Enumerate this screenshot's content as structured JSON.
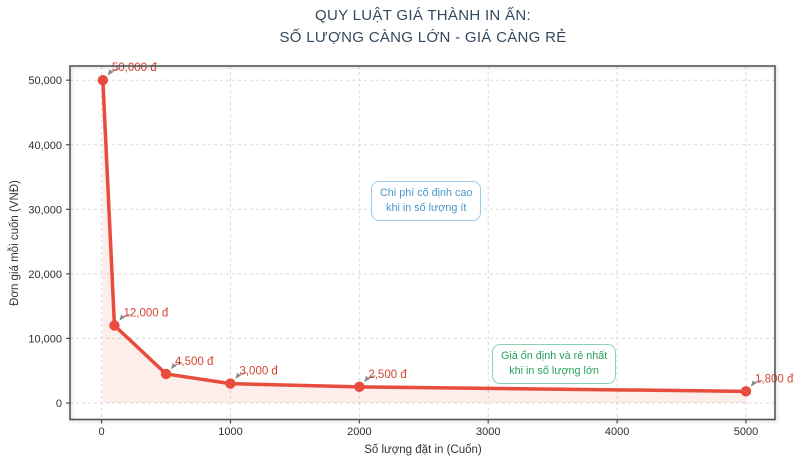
{
  "figure": {
    "title_line1": "QUY LUẬT GIÁ THÀNH IN ẤN:",
    "title_line2": "SỐ LƯỢNG CÀNG LỚN - GIÁ CÀNG RẺ"
  },
  "annotations": {
    "low_qty": {
      "line1": "Chi phí cố định cao",
      "line2": "khi in số lượng ít"
    },
    "high_qty": {
      "line1": "Giá ổn định và rẻ nhất",
      "line2": "khi in số lượng lớn"
    }
  },
  "colors": {
    "title": "#34495e",
    "line": "#e74c3c",
    "marker": "#e74c3c",
    "area_fill": "rgba(231,76,60,0.10)",
    "point_label": "#d64431",
    "grid": "#d9d9d9",
    "axis": "#4f4f4f",
    "arrow": "#8a8a8a",
    "tick_label": "#2e2e2e",
    "annotation_blue_text": "#4a97cf",
    "annotation_blue_border": "#9fcbe8",
    "annotation_green_text": "#27a35c",
    "annotation_green_border": "#8ad2ab"
  },
  "chart_data": {
    "type": "line",
    "title": "QUY LUẬT GIÁ THÀNH IN ẤN: SỐ LƯỢNG CÀNG LỚN - GIÁ CÀNG RẺ",
    "xlabel": "Số lượng đặt in (Cuốn)",
    "ylabel": "Đơn giá mỗi cuốn (VNĐ)",
    "x": [
      10,
      100,
      500,
      1000,
      2000,
      5000
    ],
    "y": [
      50000,
      12000,
      4500,
      3000,
      2500,
      1800
    ],
    "point_labels": [
      "50,000 đ",
      "12,000 đ",
      "4,500 đ",
      "3,000 đ",
      "2,500 đ",
      "1,800 đ"
    ],
    "xticks": [
      0,
      1000,
      2000,
      3000,
      4000,
      5000
    ],
    "xtick_labels": [
      "0",
      "1000",
      "2000",
      "3000",
      "4000",
      "5000"
    ],
    "yticks": [
      0,
      10000,
      20000,
      30000,
      40000,
      50000
    ],
    "ytick_labels": [
      "0",
      "10,000",
      "20,000",
      "30,000",
      "40,000",
      "50,000"
    ],
    "xlim": [
      -245,
      5225
    ],
    "ylim": [
      -2560,
      52200
    ],
    "grid": true,
    "area_fill": true,
    "legend": "none"
  }
}
